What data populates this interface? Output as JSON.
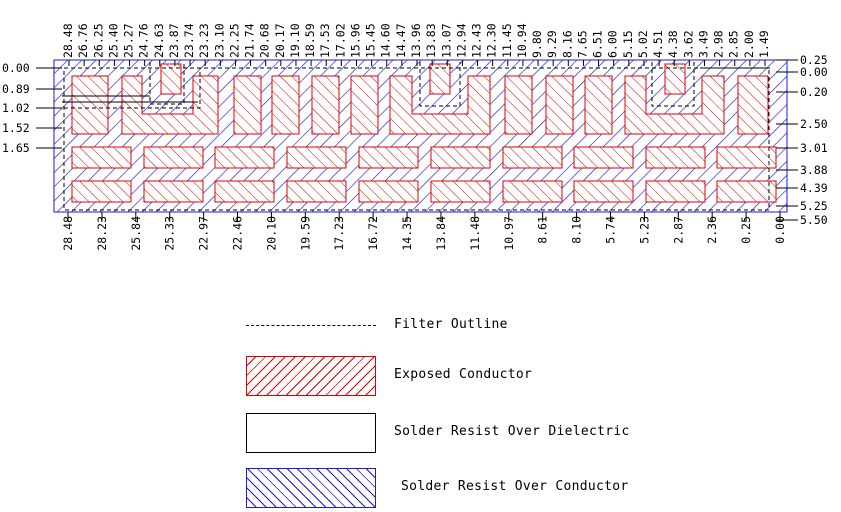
{
  "colors": {
    "exposed_conductor": "#e00000",
    "solder_resist_over_conductor": "#1a1ae0",
    "outline": "#000000"
  },
  "dimensions": {
    "top": [
      "28.48",
      "26.76",
      "26.25",
      "25.40",
      "25.27",
      "24.76",
      "24.63",
      "23.87",
      "23.74",
      "23.23",
      "23.10",
      "22.25",
      "21.74",
      "20.68",
      "20.17",
      "19.10",
      "18.59",
      "17.53",
      "17.02",
      "15.96",
      "15.45",
      "14.60",
      "14.47",
      "13.96",
      "13.83",
      "13.07",
      "12.94",
      "12.43",
      "12.30",
      "11.45",
      "10.94",
      "9.80",
      "9.29",
      "8.16",
      "7.65",
      "6.51",
      "6.00",
      "5.15",
      "5.02",
      "4.51",
      "4.38",
      "3.62",
      "3.49",
      "2.98",
      "2.85",
      "2.00",
      "1.49"
    ],
    "bottom": [
      "28.48",
      "28.23",
      "25.84",
      "25.33",
      "22.97",
      "22.46",
      "20.10",
      "19.59",
      "17.23",
      "16.72",
      "14.35",
      "13.84",
      "11.48",
      "10.97",
      "8.61",
      "8.10",
      "5.74",
      "5.23",
      "2.87",
      "2.36",
      "0.25",
      "0.00"
    ],
    "left": [
      "0.00",
      "0.89",
      "1.02",
      "1.52",
      "1.65"
    ],
    "right": [
      "0.25",
      "0.00",
      "0.20",
      "2.50",
      "3.01",
      "3.88",
      "4.39",
      "5.25",
      "5.50"
    ]
  },
  "legend": [
    {
      "key": "filter-outline",
      "label": "Filter Outline"
    },
    {
      "key": "exposed-conductor",
      "label": "Exposed Conductor"
    },
    {
      "key": "solder-resist-over-dielectric",
      "label": "Solder Resist Over Dielectric"
    },
    {
      "key": "solder-resist-over-conductor",
      "label": "Solder Resist Over Conductor"
    }
  ]
}
